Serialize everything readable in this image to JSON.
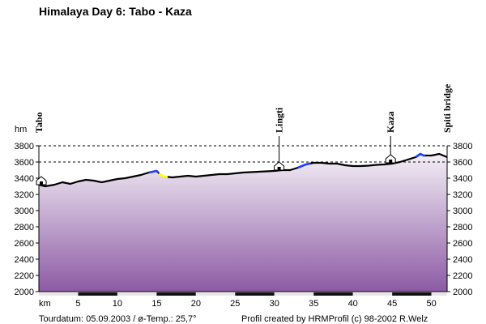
{
  "chart_data": {
    "type": "area",
    "title": "Himalaya Day 6: Tabo - Kaza",
    "ylabel": "hm",
    "xlabel": "km",
    "xlim": [
      0,
      52
    ],
    "ylim": [
      2000,
      3800
    ],
    "y_ticks": [
      2000,
      2200,
      2400,
      2600,
      2800,
      3000,
      3200,
      3400,
      3600,
      3800
    ],
    "x_ticks": [
      5,
      10,
      15,
      20,
      25,
      30,
      35,
      40,
      45,
      50
    ],
    "grid": "dashed horizontal lines at 3600 and 3800",
    "colors": {
      "fill_top": "#f4eff6",
      "fill_bottom": "#8c5aa4",
      "line": "#000000",
      "highlight_blue": "#1f3cff",
      "highlight_yellow": "#ffff00"
    },
    "series": [
      {
        "name": "",
        "x": [
          0,
          0.8,
          2,
          3,
          4,
          5,
          6,
          7,
          8,
          9,
          10,
          11,
          12,
          13,
          14,
          15,
          15.5,
          16,
          17,
          18,
          19,
          20,
          21,
          22,
          23,
          24,
          25,
          26,
          27,
          28,
          29,
          30,
          31,
          32,
          33,
          34,
          35,
          36,
          37,
          38,
          39,
          40,
          41,
          42,
          43,
          44,
          45,
          46,
          47,
          48,
          48.6,
          49,
          50,
          51,
          52
        ],
        "values": [
          3320,
          3300,
          3320,
          3350,
          3330,
          3360,
          3380,
          3370,
          3350,
          3370,
          3390,
          3400,
          3420,
          3440,
          3470,
          3490,
          3440,
          3420,
          3410,
          3420,
          3430,
          3420,
          3430,
          3440,
          3450,
          3450,
          3460,
          3470,
          3475,
          3480,
          3485,
          3490,
          3500,
          3500,
          3530,
          3570,
          3590,
          3590,
          3580,
          3580,
          3560,
          3550,
          3550,
          3555,
          3565,
          3570,
          3580,
          3600,
          3630,
          3660,
          3700,
          3680,
          3680,
          3700,
          3660
        ]
      }
    ],
    "highlights": [
      {
        "color": "blue",
        "x": [
          14,
          15.2
        ]
      },
      {
        "color": "yellow",
        "x": [
          15.3,
          16.4
        ]
      },
      {
        "color": "blue",
        "x": [
          33,
          34.6
        ]
      },
      {
        "color": "blue",
        "x": [
          48,
          49.2
        ]
      }
    ],
    "waypoints": [
      {
        "label": "Tabo",
        "km": 0,
        "elevation": 3360
      },
      {
        "label": "Lingti",
        "km": 30.6,
        "elevation": 3540
      },
      {
        "label": "Kaza",
        "km": 44.8,
        "elevation": 3630
      },
      {
        "label": "Spiti bridge",
        "km": 52,
        "elevation": 3660
      }
    ],
    "footer": {
      "left": "Tourdatum: 05.09.2003  /  ø-Temp.: 25,7°",
      "right": "Profil created by HRMProfil (c) 98-2002 R.Welz"
    }
  }
}
